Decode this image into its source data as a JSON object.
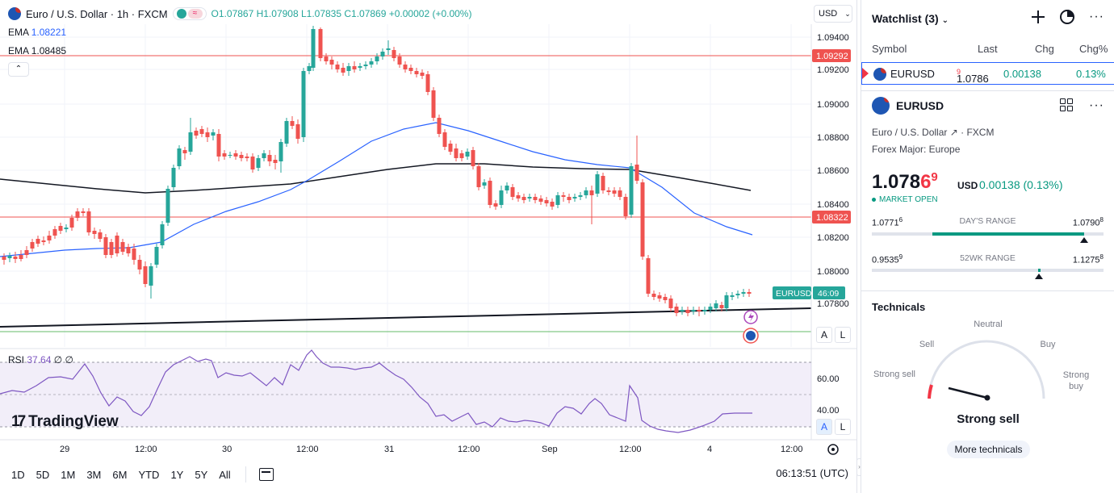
{
  "header": {
    "symbol_title": "Euro / U.S. Dollar · 1h · FXCM",
    "ohlc": "O1.07867 H1.07908 L1.07835 C1.07869 +0.00002 (+0.00%)",
    "currency_btn": "USD"
  },
  "indicators": {
    "ema1_label": "EMA",
    "ema1_value": "1.08221",
    "ema2_label": "EMA",
    "ema2_value": "1.08485",
    "rsi_label": "RSI",
    "rsi_value": "37.64",
    "rsi_extra": "∅ ∅"
  },
  "price_axis": {
    "labels": [
      "1.09400",
      "1.09200",
      "1.09000",
      "1.08800",
      "1.08600",
      "1.08400",
      "1.08200",
      "1.08000",
      "1.07800"
    ],
    "marker_upper": "1.09292",
    "marker_lower": "1.08322",
    "current_symbol": "EURUSD",
    "current_countdown": "46:09"
  },
  "rsi_axis": {
    "labels": [
      "60.00",
      "40.00"
    ]
  },
  "time_axis": [
    "29",
    "12:00",
    "30",
    "12:00",
    "31",
    "12:00",
    "Sep",
    "12:00",
    "4",
    "12:00"
  ],
  "scale_buttons": {
    "auto": "A",
    "log": "L"
  },
  "branding": {
    "logo_text": "TradingView",
    "logo_mark": "17"
  },
  "bottom_bar": {
    "timeframes": [
      "1D",
      "5D",
      "1M",
      "3M",
      "6M",
      "YTD",
      "1Y",
      "5Y",
      "All"
    ],
    "clock": "06:13:51 (UTC)"
  },
  "watchlist": {
    "title": "Watchlist (3)",
    "columns": {
      "symbol": "Symbol",
      "last": "Last",
      "chg": "Chg",
      "chgpct": "Chg%"
    },
    "rows": [
      {
        "symbol": "EURUSD",
        "last_main": "1.0786",
        "last_small": "9",
        "chg": "0.00138",
        "chgpct": "0.13%"
      }
    ]
  },
  "details": {
    "symbol": "EURUSD",
    "description": "Euro / U.S. Dollar",
    "exchange": "FXCM",
    "category": "Forex Major: Europe",
    "price_main": "1.078",
    "price_red": "6",
    "price_sup": "9",
    "price_unit": "USD",
    "price_change": "0.00138 (0.13%)",
    "market_status": "MARKET OPEN",
    "days_range": {
      "label": "DAY'S RANGE",
      "low": "1.0771",
      "low_sup": "6",
      "high": "1.0790",
      "high_sup": "8",
      "position": 0.88
    },
    "wk52_range": {
      "label": "52WK RANGE",
      "low": "0.9535",
      "low_sup": "9",
      "high": "1.1275",
      "high_sup": "8",
      "position": 0.72
    }
  },
  "technicals": {
    "title": "Technicals",
    "labels": {
      "strong_sell": "Strong sell",
      "sell": "Sell",
      "neutral": "Neutral",
      "buy": "Buy",
      "strong_buy": "Strong buy"
    },
    "result": "Strong sell",
    "more_button": "More technicals"
  },
  "colors": {
    "up": "#26a69a",
    "down": "#ef5350",
    "ema_fast": "#2962ff",
    "ema_slow": "#131722",
    "rsi": "#7e57c2",
    "accent": "#2962ff"
  }
}
